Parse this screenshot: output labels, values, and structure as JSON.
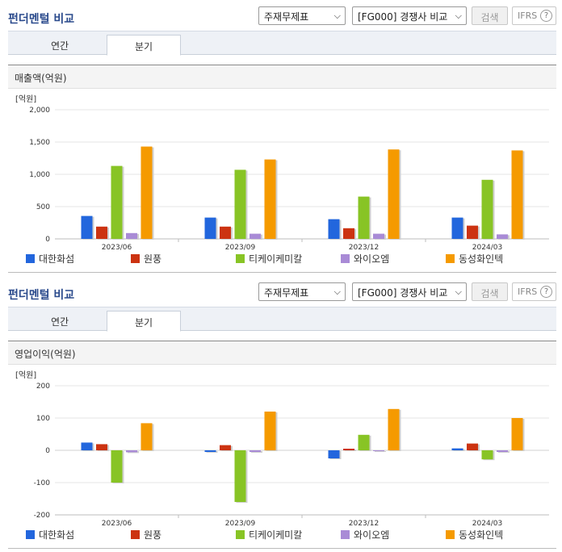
{
  "panels": [
    {
      "title": "펀더멘털 비교",
      "select1": "주재무제표",
      "select2": "[FG000] 경쟁사 비교",
      "search_label": "검색",
      "ifrs_label": "IFRS",
      "help_glyph": "?",
      "tabs": [
        "연간",
        "분기"
      ],
      "active_tab": "분기",
      "section_title": "매출액(억원)"
    },
    {
      "title": "펀더멘털 비교",
      "select1": "주재무제표",
      "select2": "[FG000] 경쟁사 비교",
      "search_label": "검색",
      "ifrs_label": "IFRS",
      "help_glyph": "?",
      "tabs": [
        "연간",
        "분기"
      ],
      "active_tab": "분기",
      "section_title": "영업이익(억원)"
    }
  ],
  "chart_data": [
    {
      "type": "bar",
      "unit_label": "[억원]",
      "categories": [
        "2023/06",
        "2023/09",
        "2023/12",
        "2024/03"
      ],
      "ylim": [
        0,
        2000
      ],
      "yticks": [
        0,
        500,
        1000,
        1500,
        2000
      ],
      "ytick_labels": [
        "0",
        "500",
        "1,000",
        "1,500",
        "2,000"
      ],
      "grid": true,
      "legend_position": "bottom",
      "series": [
        {
          "name": "대한화섬",
          "color": "#2266dd",
          "values": [
            355,
            330,
            305,
            330
          ]
        },
        {
          "name": "원풍",
          "color": "#cc3311",
          "values": [
            190,
            190,
            165,
            205
          ]
        },
        {
          "name": "티케이케미칼",
          "color": "#88c425",
          "values": [
            1130,
            1070,
            655,
            915
          ]
        },
        {
          "name": "와이오엠",
          "color": "#a98bd6",
          "values": [
            90,
            80,
            80,
            70
          ]
        },
        {
          "name": "동성화인텍",
          "color": "#f59a00",
          "values": [
            1430,
            1230,
            1385,
            1370
          ]
        }
      ]
    },
    {
      "type": "bar",
      "unit_label": "[억원]",
      "categories": [
        "2023/06",
        "2023/09",
        "2023/12",
        "2024/03"
      ],
      "ylim": [
        -200,
        200
      ],
      "yticks": [
        -200,
        -100,
        0,
        100,
        200
      ],
      "ytick_labels": [
        "-200",
        "-100",
        "0",
        "100",
        "200"
      ],
      "grid": true,
      "legend_position": "bottom",
      "series": [
        {
          "name": "대한화섬",
          "color": "#2266dd",
          "values": [
            24,
            -5,
            -25,
            6
          ]
        },
        {
          "name": "원풍",
          "color": "#cc3311",
          "values": [
            19,
            16,
            5,
            21
          ]
        },
        {
          "name": "티케이케미칼",
          "color": "#88c425",
          "values": [
            -100,
            -160,
            48,
            -28
          ]
        },
        {
          "name": "와이오엠",
          "color": "#a98bd6",
          "values": [
            -6,
            -5,
            0,
            -5
          ]
        },
        {
          "name": "동성화인텍",
          "color": "#f59a00",
          "values": [
            84,
            120,
            128,
            100
          ]
        }
      ]
    }
  ]
}
